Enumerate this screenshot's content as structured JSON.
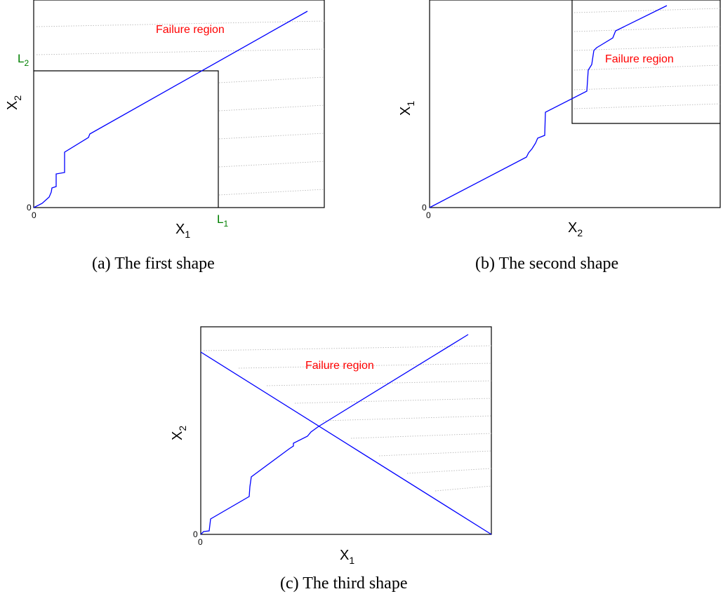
{
  "panels": [
    {
      "id": "a",
      "caption": "(a) The first shape",
      "x_label": "X",
      "x_sub": "1",
      "y_label": "X",
      "y_sub": "2",
      "origin_x": "0",
      "origin_y": "0",
      "region_text": "Failure region",
      "limit_x_label": "L",
      "limit_x_sub": "1",
      "limit_y_label": "L",
      "limit_y_sub": "2"
    },
    {
      "id": "b",
      "caption": "(b) The second shape",
      "x_label": "X",
      "x_sub": "2",
      "y_label": "X",
      "y_sub": "1",
      "origin_x": "0",
      "origin_y": "0",
      "region_text": "Failure region"
    },
    {
      "id": "c",
      "caption": "(c) The third shape",
      "x_label": "X",
      "x_sub": "1",
      "y_label": "X",
      "y_sub": "2",
      "origin_x": "0",
      "origin_y": "0",
      "region_text": "Failure region"
    }
  ],
  "colors": {
    "curve": "#0000ff",
    "region_text": "#ff0000",
    "limit_label": "#008000",
    "frame": "#000000",
    "hatch": "#b0b0b0"
  }
}
